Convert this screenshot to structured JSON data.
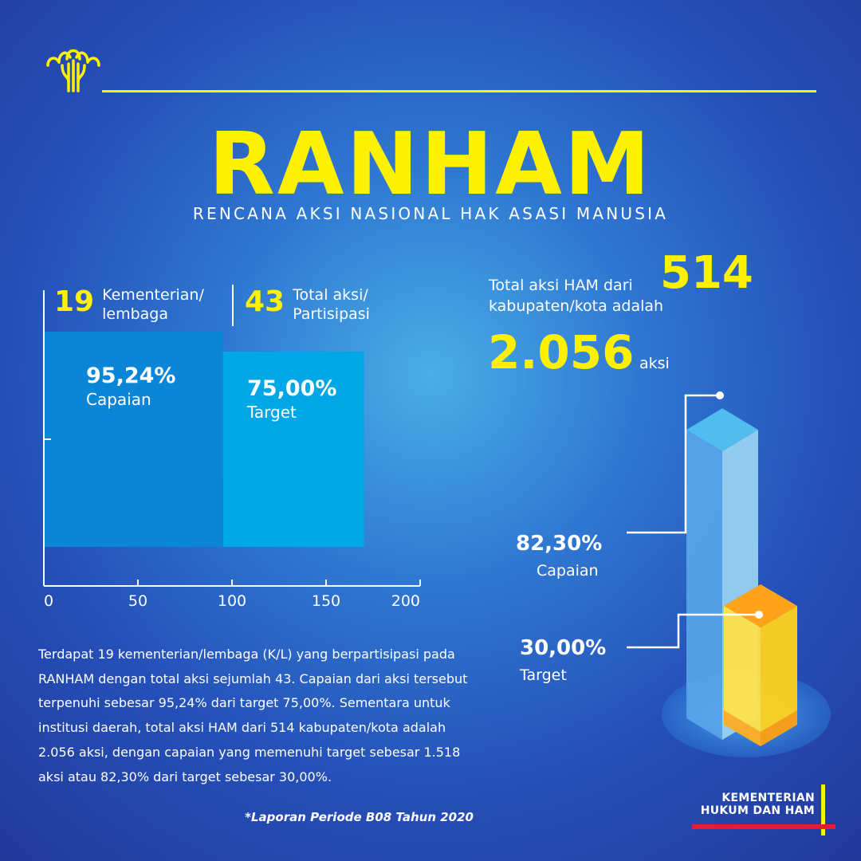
{
  "header": {
    "logo_icon": "ministry-emblem-icon",
    "title": "RANHAM",
    "subtitle": "RENCANA AKSI NASIONAL HAK ASASI MANUSIA"
  },
  "left_panel": {
    "stats": [
      {
        "number": "19",
        "label_line1": "Kementerian/",
        "label_line2": "lembaga"
      },
      {
        "number": "43",
        "label_line1": "Total aksi/",
        "label_line2": "Partisipasi"
      }
    ]
  },
  "chart_data": [
    {
      "type": "bar",
      "orientation": "horizontal",
      "categories": [
        "Capaian",
        "Target"
      ],
      "values": [
        95.24,
        75.0
      ],
      "value_labels": [
        "95,24%",
        "75,00%"
      ],
      "xlim": [
        0,
        200
      ],
      "xticks": [
        0,
        50,
        100,
        150,
        200
      ],
      "xtick_labels": [
        "0",
        "50",
        "100",
        "150",
        "200"
      ],
      "colors": [
        "#0b86d6",
        "#00a7e6"
      ]
    },
    {
      "type": "bar",
      "style": "3d-isometric-overlap",
      "categories": [
        "Capaian",
        "Target"
      ],
      "values": [
        82.3,
        30.0
      ],
      "value_labels": [
        "82,30%",
        "30,00%"
      ],
      "colors": [
        "#9fd6f4",
        "#ffd21f"
      ]
    }
  ],
  "right_panel": {
    "line1": "Total aksi HAM dari",
    "regencies": "514",
    "line2": "kabupaten/kota adalah",
    "total_actions": "2.056",
    "unit": "aksi"
  },
  "description": "Terdapat 19 kementerian/lembaga (K/L) yang berpartisipasi pada RANHAM dengan total aksi sejumlah 43. Capaian dari aksi tersebut terpenuhi sebesar 95,24% dari target 75,00%. Sementara untuk institusi daerah, total aksi HAM dari 514 kabupaten/kota adalah 2.056 aksi, dengan capaian yang memenuhi target sebesar 1.518 aksi atau 82,30% dari target sebesar 30,00%.",
  "footnote": "*Laporan Periode B08 Tahun 2020",
  "ministry": {
    "line1": "KEMENTERIAN",
    "line2": "HUKUM DAN HAM"
  },
  "colors": {
    "accent": "#fff200",
    "background": "#2550b8",
    "red_bar": "#e0202a"
  }
}
